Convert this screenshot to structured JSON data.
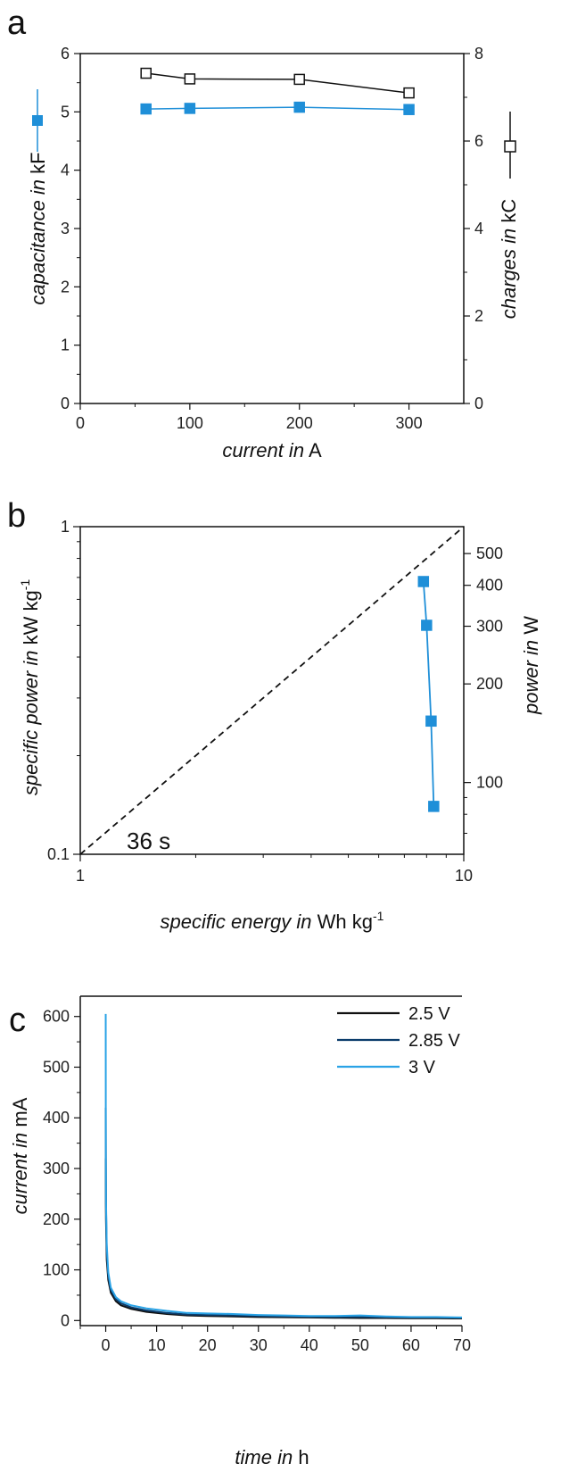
{
  "colors": {
    "blue": "#1f8fd8",
    "black": "#111111",
    "navy": "#0b3c6b",
    "light_blue": "#2aa3e6"
  },
  "panels": {
    "a": "a",
    "b": "b",
    "c": "c"
  },
  "chart_data": [
    {
      "id": "a",
      "type": "line",
      "xlabel_italic": "current in",
      "xlabel_unit": " A",
      "ylabel_italic": "capacitance in",
      "ylabel_unit": " kF",
      "y2label_italic": "charges in",
      "y2label_unit": " kC",
      "xlim": [
        0,
        350
      ],
      "ylim": [
        0,
        6
      ],
      "y2lim": [
        0,
        8
      ],
      "xticks": [
        "0",
        "100",
        "200",
        "300"
      ],
      "yticks": [
        "0",
        "1",
        "2",
        "3",
        "4",
        "5",
        "6"
      ],
      "y2ticks": [
        "0",
        "2",
        "4",
        "6",
        "8"
      ],
      "series": [
        {
          "axis": "left",
          "marker": "filled-square",
          "color": "#1f8fd8",
          "x": [
            60,
            100,
            200,
            300
          ],
          "y": [
            5.05,
            5.06,
            5.08,
            5.04
          ]
        },
        {
          "axis": "right",
          "marker": "open-square",
          "color": "#111111",
          "x": [
            60,
            100,
            200,
            300
          ],
          "y": [
            7.55,
            7.42,
            7.41,
            7.1
          ]
        }
      ]
    },
    {
      "id": "b",
      "type": "line",
      "xscale": "log",
      "yscale": "log",
      "xlabel_italic": "specific energy in",
      "xlabel_unit": " Wh kg",
      "xlabel_sup": "-1",
      "ylabel_italic": "specific power in",
      "ylabel_unit": " kW kg",
      "ylabel_sup": "-1",
      "y2label_italic": "power in",
      "y2label_unit": " W",
      "xlim": [
        1,
        10
      ],
      "ylim": [
        0.1,
        1
      ],
      "y2lim": [
        60.4,
        604
      ],
      "xticks": [
        "1",
        "10"
      ],
      "yticks": [
        "0.1",
        "1"
      ],
      "y2ticks": [
        "100",
        "200",
        "300",
        "400",
        "500"
      ],
      "annotation": "36 s",
      "series": [
        {
          "marker": "filled-square",
          "color": "#1f8fd8",
          "x": [
            7.85,
            8.0,
            8.22,
            8.35
          ],
          "y": [
            0.68,
            0.5,
            0.255,
            0.14
          ]
        },
        {
          "style": "dashed",
          "color": "#111111",
          "x": [
            1,
            10
          ],
          "y": [
            0.1,
            1
          ]
        }
      ]
    },
    {
      "id": "c",
      "type": "line",
      "xlabel_italic": "time in",
      "xlabel_unit": " h",
      "ylabel_italic": "current in",
      "ylabel_unit": " mA",
      "xlim": [
        -5,
        70
      ],
      "ylim": [
        -10,
        640
      ],
      "xticks": [
        "0",
        "10",
        "20",
        "30",
        "40",
        "50",
        "60",
        "70"
      ],
      "yticks": [
        "0",
        "100",
        "200",
        "300",
        "400",
        "500",
        "600"
      ],
      "legend_position": "top-right",
      "series": [
        {
          "name": "2.5 V",
          "color": "#111111",
          "x": [
            0,
            0.05,
            0.2,
            0.5,
            1,
            2,
            3,
            5,
            8,
            12,
            16,
            20,
            25,
            30,
            35,
            40,
            45,
            50,
            55,
            60,
            65,
            70
          ],
          "y": [
            320,
            200,
            120,
            80,
            55,
            38,
            30,
            23,
            17,
            13,
            10,
            9,
            8,
            7,
            6.5,
            6,
            5.5,
            5,
            5,
            4.5,
            4.5,
            4
          ]
        },
        {
          "name": "2.85 V",
          "color": "#0b3c6b",
          "x": [
            0,
            0.05,
            0.2,
            0.5,
            1,
            2,
            3,
            5,
            8,
            12,
            16,
            20,
            25,
            30,
            35,
            40,
            45,
            50,
            55,
            60,
            65,
            70
          ],
          "y": [
            420,
            230,
            135,
            88,
            60,
            42,
            34,
            26,
            20,
            15,
            12,
            11,
            10,
            9,
            8,
            7.5,
            7,
            7,
            6.5,
            6,
            6,
            5.5
          ]
        },
        {
          "name": "3 V",
          "color": "#2aa3e6",
          "x": [
            0,
            0.02,
            0.05,
            0.2,
            0.5,
            1,
            2,
            3,
            5,
            8,
            12,
            16,
            20,
            25,
            30,
            35,
            40,
            45,
            50,
            55,
            60,
            65,
            70
          ],
          "y": [
            605,
            330,
            240,
            150,
            95,
            65,
            46,
            38,
            30,
            24,
            19,
            15,
            14,
            13,
            11,
            10,
            9,
            9,
            10,
            8,
            7,
            7,
            6
          ]
        }
      ]
    }
  ]
}
